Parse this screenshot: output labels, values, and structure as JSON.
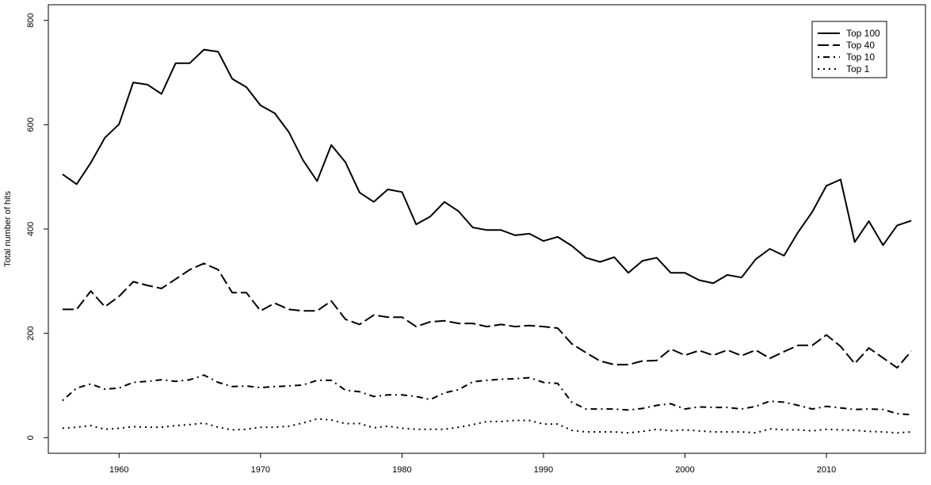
{
  "chart_data": {
    "type": "line",
    "title": "",
    "xlabel": "",
    "ylabel": "Total number of hits",
    "xlim": [
      1955,
      2017
    ],
    "ylim": [
      -30,
      830
    ],
    "xticks": [
      1960,
      1970,
      1980,
      1990,
      2000,
      2010
    ],
    "yticks": [
      0,
      200,
      400,
      600,
      800
    ],
    "grid": false,
    "legend": {
      "placement": "top-right"
    },
    "x": [
      1956,
      1957,
      1958,
      1959,
      1960,
      1961,
      1962,
      1963,
      1964,
      1965,
      1966,
      1967,
      1968,
      1969,
      1970,
      1971,
      1972,
      1973,
      1974,
      1975,
      1976,
      1977,
      1978,
      1979,
      1980,
      1981,
      1982,
      1983,
      1984,
      1985,
      1986,
      1987,
      1988,
      1989,
      1990,
      1991,
      1992,
      1993,
      1994,
      1995,
      1996,
      1997,
      1998,
      1999,
      2000,
      2001,
      2002,
      2003,
      2004,
      2005,
      2006,
      2007,
      2008,
      2009,
      2010,
      2011,
      2012,
      2013,
      2014,
      2015,
      2016
    ],
    "series": [
      {
        "name": "Top 100",
        "dash": "solid",
        "values": [
          505,
          486,
          527,
          575,
          601,
          681,
          677,
          659,
          718,
          718,
          744,
          740,
          688,
          672,
          637,
          622,
          586,
          532,
          492,
          561,
          528,
          470,
          452,
          476,
          471,
          409,
          424,
          452,
          434,
          403,
          398,
          398,
          388,
          391,
          377,
          385,
          368,
          345,
          337,
          346,
          316,
          339,
          345,
          316,
          316,
          302,
          296,
          312,
          307,
          342,
          362,
          349,
          394,
          433,
          483,
          495,
          375,
          415,
          369,
          407,
          416
        ]
      },
      {
        "name": "Top 40",
        "dash": "longdash",
        "values": [
          246,
          246,
          281,
          251,
          271,
          299,
          292,
          286,
          304,
          322,
          334,
          322,
          278,
          278,
          243,
          258,
          246,
          243,
          243,
          262,
          227,
          217,
          235,
          231,
          231,
          213,
          222,
          224,
          219,
          219,
          213,
          217,
          213,
          215,
          213,
          210,
          180,
          163,
          147,
          140,
          140,
          147,
          148,
          170,
          158,
          167,
          158,
          168,
          157,
          168,
          152,
          165,
          177,
          177,
          197,
          175,
          142,
          172,
          153,
          134,
          166
        ]
      },
      {
        "name": "Top 10",
        "dash": "dotdash",
        "values": [
          71,
          95,
          103,
          93,
          95,
          106,
          108,
          111,
          108,
          111,
          120,
          106,
          98,
          99,
          96,
          98,
          99,
          101,
          110,
          110,
          91,
          88,
          79,
          82,
          82,
          79,
          73,
          86,
          92,
          107,
          110,
          112,
          113,
          115,
          106,
          104,
          68,
          55,
          55,
          55,
          53,
          56,
          62,
          65,
          55,
          59,
          58,
          58,
          55,
          60,
          70,
          68,
          62,
          55,
          60,
          57,
          54,
          55,
          54,
          46,
          44
        ]
      },
      {
        "name": "Top 1",
        "dash": "dotted",
        "values": [
          18,
          20,
          23,
          16,
          18,
          21,
          20,
          20,
          23,
          25,
          28,
          20,
          15,
          16,
          20,
          20,
          22,
          28,
          36,
          34,
          27,
          27,
          19,
          22,
          18,
          16,
          16,
          16,
          20,
          25,
          31,
          31,
          33,
          33,
          26,
          26,
          14,
          11,
          11,
          11,
          9,
          12,
          16,
          13,
          15,
          13,
          11,
          11,
          11,
          9,
          17,
          15,
          15,
          13,
          16,
          15,
          14,
          12,
          11,
          9,
          11
        ]
      }
    ]
  }
}
